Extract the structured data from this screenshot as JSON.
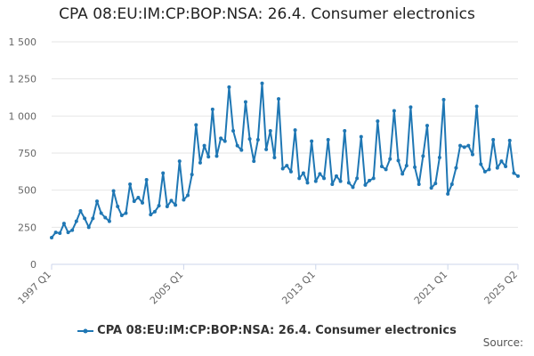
{
  "chart_data": {
    "type": "line",
    "title": "CPA 08:EU:IM:CP:BOP:NSA: 26.4. Consumer electronics",
    "xlabel": "",
    "ylabel": "",
    "ylim": [
      0,
      1500
    ],
    "yticks": [
      0,
      250,
      500,
      750,
      1000,
      1250,
      1500
    ],
    "ytick_labels": [
      "0",
      "250",
      "500",
      "750",
      "1 000",
      "1 250",
      "1 500"
    ],
    "xtick_labels": [
      "1997 Q1",
      "2005 Q1",
      "2013 Q1",
      "2021 Q1",
      "2025 Q2"
    ],
    "xtick_indices": [
      0,
      32,
      64,
      96,
      113
    ],
    "grid": true,
    "legend_position": "bottom",
    "color": "#1f77b4",
    "series": [
      {
        "name": "CPA 08:EU:IM:CP:BOP:NSA: 26.4. Consumer electronics",
        "values": [
          180,
          215,
          210,
          275,
          215,
          230,
          290,
          360,
          310,
          250,
          310,
          425,
          345,
          315,
          290,
          495,
          390,
          330,
          345,
          540,
          425,
          450,
          415,
          570,
          335,
          355,
          395,
          615,
          390,
          430,
          400,
          695,
          435,
          465,
          605,
          940,
          685,
          800,
          725,
          1045,
          730,
          850,
          830,
          1195,
          900,
          800,
          770,
          1095,
          845,
          695,
          840,
          1220,
          775,
          900,
          720,
          1115,
          645,
          665,
          625,
          905,
          580,
          615,
          550,
          830,
          560,
          610,
          580,
          840,
          540,
          595,
          560,
          900,
          550,
          520,
          580,
          860,
          535,
          565,
          580,
          965,
          660,
          640,
          710,
          1035,
          700,
          610,
          665,
          1060,
          655,
          540,
          730,
          935,
          515,
          545,
          720,
          1110,
          475,
          540,
          650,
          800,
          790,
          800,
          740,
          1065,
          675,
          625,
          640,
          840,
          650,
          695,
          660,
          835,
          615,
          595
        ]
      }
    ]
  },
  "page": {
    "source_label": "Source:"
  }
}
